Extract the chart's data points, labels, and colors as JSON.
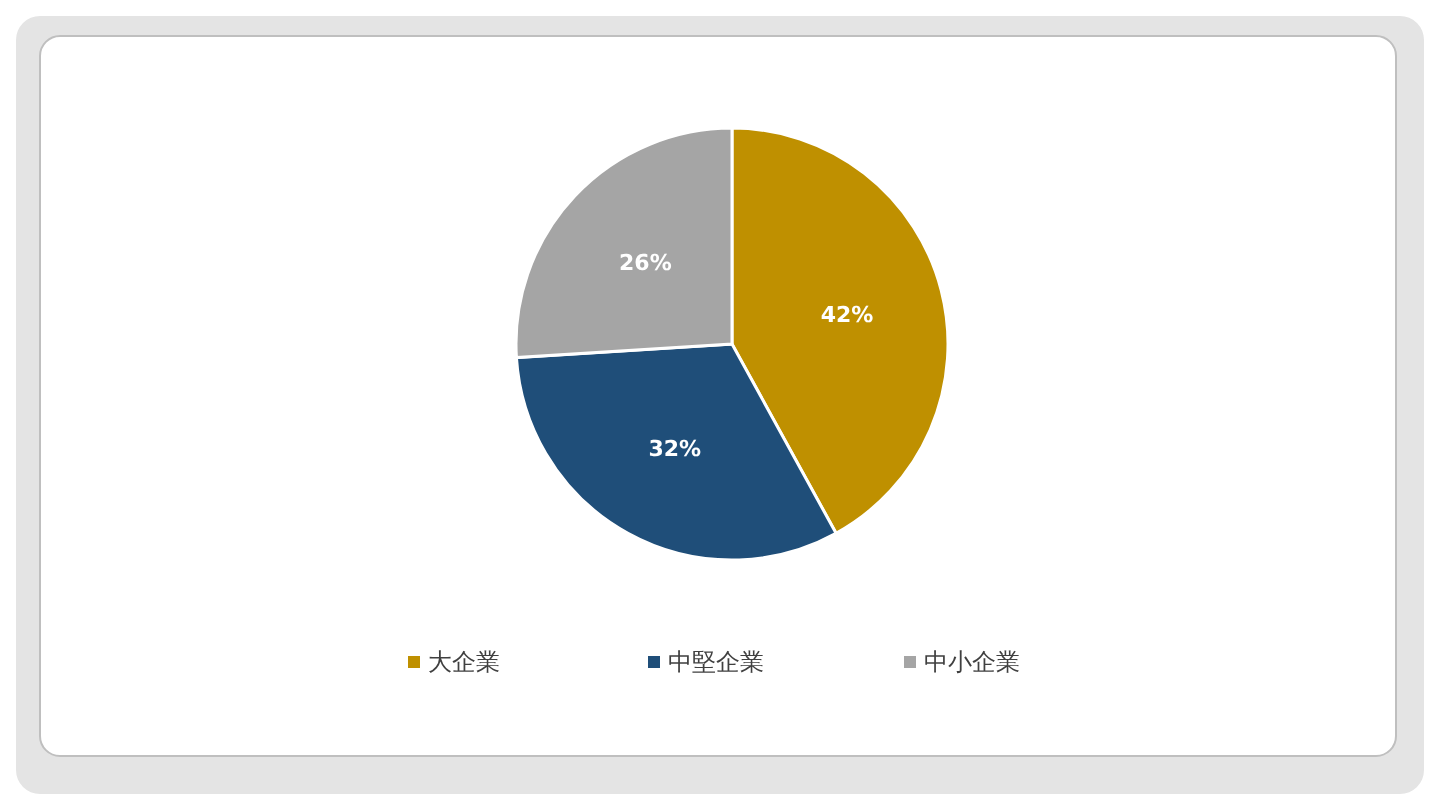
{
  "chart_data": {
    "type": "pie",
    "categories": [
      "大企業",
      "中堅企業",
      "中小企業"
    ],
    "values": [
      42,
      32,
      26
    ],
    "colors": [
      "#bf9000",
      "#1f4e79",
      "#a5a5a5"
    ],
    "value_labels": [
      "42%",
      "32%",
      "26%"
    ],
    "legend": "bottom"
  }
}
